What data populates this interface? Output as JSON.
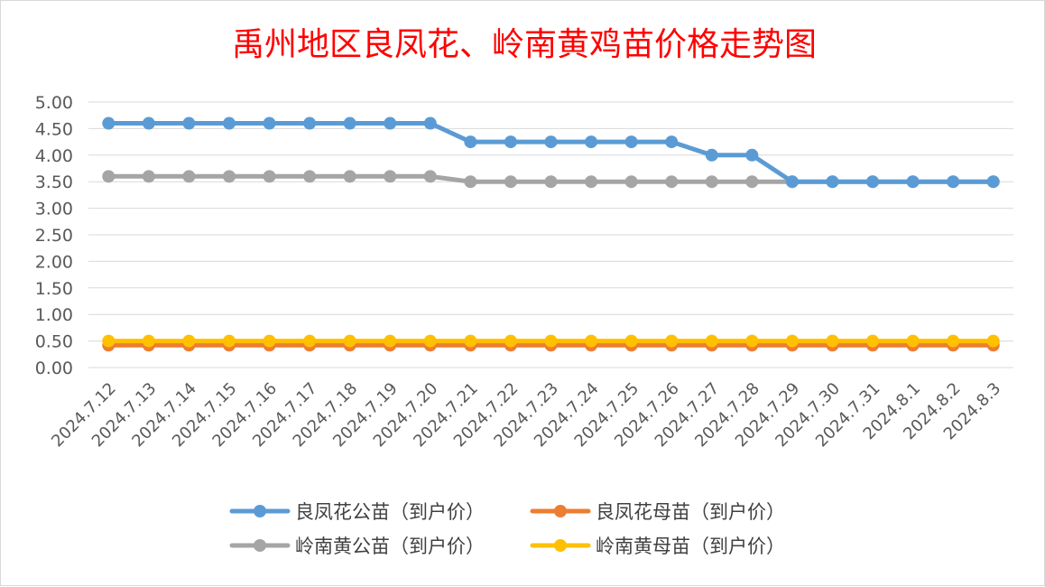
{
  "chart_data": {
    "type": "line",
    "title": "禹州地区良凤花、岭南黄鸡苗价格走势图",
    "xlabel": "",
    "ylabel": "",
    "ylim": [
      0,
      5
    ],
    "yticks": [
      "0.00",
      "0.50",
      "1.00",
      "1.50",
      "2.00",
      "2.50",
      "3.00",
      "3.50",
      "4.00",
      "4.50",
      "5.00"
    ],
    "grid": true,
    "legend_position": "bottom",
    "categories": [
      "2024.7.12",
      "2024.7.13",
      "2024.7.14",
      "2024.7.15",
      "2024.7.16",
      "2024.7.17",
      "2024.7.18",
      "2024.7.19",
      "2024.7.20",
      "2024.7.21",
      "2024.7.22",
      "2024.7.23",
      "2024.7.24",
      "2024.7.25",
      "2024.7.26",
      "2024.7.27",
      "2024.7.28",
      "2024.7.29",
      "2024.7.30",
      "2024.7.31",
      "2024.8.1",
      "2024.8.2",
      "2024.8.3"
    ],
    "series": [
      {
        "name": "良凤花公苗（到户价）",
        "color": "#5b9bd5",
        "values": [
          4.6,
          4.6,
          4.6,
          4.6,
          4.6,
          4.6,
          4.6,
          4.6,
          4.6,
          4.25,
          4.25,
          4.25,
          4.25,
          4.25,
          4.25,
          4.0,
          4.0,
          3.5,
          3.5,
          3.5,
          3.5,
          3.5,
          3.5
        ]
      },
      {
        "name": "良凤花母苗（到户价）",
        "color": "#ed7d31",
        "values": [
          0.42,
          0.42,
          0.42,
          0.42,
          0.42,
          0.42,
          0.42,
          0.42,
          0.42,
          0.42,
          0.42,
          0.42,
          0.42,
          0.42,
          0.42,
          0.42,
          0.42,
          0.42,
          0.42,
          0.42,
          0.42,
          0.42,
          0.42
        ]
      },
      {
        "name": "岭南黄公苗（到户价）",
        "color": "#a5a5a5",
        "values": [
          3.6,
          3.6,
          3.6,
          3.6,
          3.6,
          3.6,
          3.6,
          3.6,
          3.6,
          3.5,
          3.5,
          3.5,
          3.5,
          3.5,
          3.5,
          3.5,
          3.5,
          3.5,
          3.5,
          3.5,
          3.5,
          3.5,
          3.5
        ]
      },
      {
        "name": "岭南黄母苗（到户价）",
        "color": "#ffc000",
        "values": [
          0.5,
          0.5,
          0.5,
          0.5,
          0.5,
          0.5,
          0.5,
          0.5,
          0.5,
          0.5,
          0.5,
          0.5,
          0.5,
          0.5,
          0.5,
          0.5,
          0.5,
          0.5,
          0.5,
          0.5,
          0.5,
          0.5,
          0.5
        ]
      }
    ],
    "title_color": "#ff0000",
    "grid_color": "#d9d9d9"
  }
}
